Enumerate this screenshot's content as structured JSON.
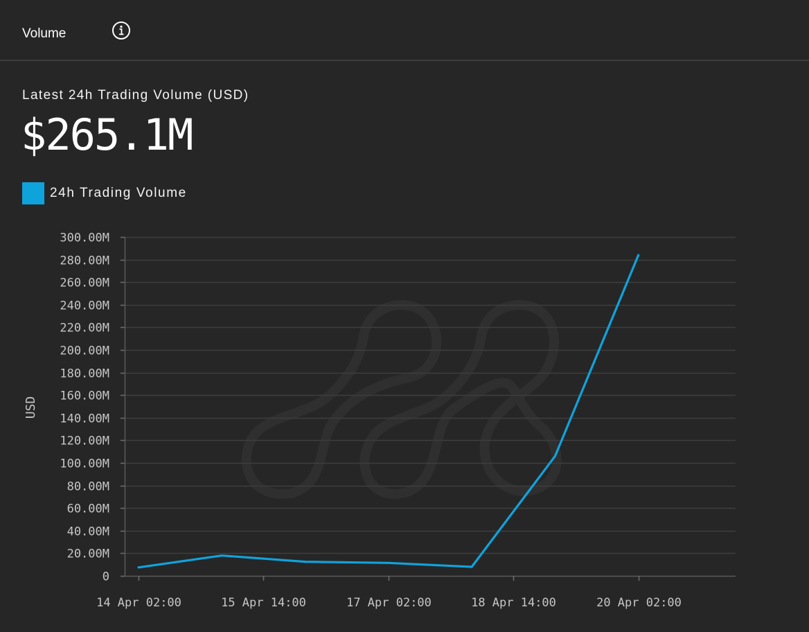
{
  "header": {
    "title": "Volume",
    "info_icon": "info-icon"
  },
  "metric": {
    "label": "Latest 24h Trading Volume (USD)",
    "value": "$265.1M"
  },
  "legend": {
    "label": "24h Trading Volume",
    "color": "#0fa3dc"
  },
  "chart_data": {
    "type": "line",
    "title": "",
    "xlabel": "",
    "ylabel": "USD",
    "ylim": [
      0,
      300000000
    ],
    "y_ticks": [
      0,
      20000000,
      40000000,
      60000000,
      80000000,
      100000000,
      120000000,
      140000000,
      160000000,
      180000000,
      200000000,
      220000000,
      240000000,
      260000000,
      280000000,
      300000000
    ],
    "y_tick_labels": [
      "0",
      "20.00M",
      "40.00M",
      "60.00M",
      "80.00M",
      "100.00M",
      "120.00M",
      "140.00M",
      "160.00M",
      "180.00M",
      "200.00M",
      "220.00M",
      "240.00M",
      "260.00M",
      "280.00M",
      "300.00M"
    ],
    "x_ticks": [
      "2024-04-14T02:00",
      "2024-04-15T14:00",
      "2024-04-17T02:00",
      "2024-04-18T14:00",
      "2024-04-20T02:00"
    ],
    "x_tick_labels": [
      "14 Apr 02:00",
      "15 Apr 14:00",
      "17 Apr 02:00",
      "18 Apr 14:00",
      "20 Apr 02:00"
    ],
    "xlim": [
      "2024-04-13T22:00",
      "2024-04-21T06:00"
    ],
    "grid": true,
    "series": [
      {
        "name": "24h Trading Volume",
        "color": "#0fa3dc",
        "points": [
          {
            "x": "2024-04-14T02:00",
            "y": 7500000
          },
          {
            "x": "2024-04-15T02:00",
            "y": 18000000
          },
          {
            "x": "2024-04-16T02:00",
            "y": 12500000
          },
          {
            "x": "2024-04-17T02:00",
            "y": 11500000
          },
          {
            "x": "2024-04-18T02:00",
            "y": 8000000
          },
          {
            "x": "2024-04-19T02:00",
            "y": 106000000
          },
          {
            "x": "2024-04-20T02:00",
            "y": 284000000
          }
        ]
      }
    ]
  }
}
